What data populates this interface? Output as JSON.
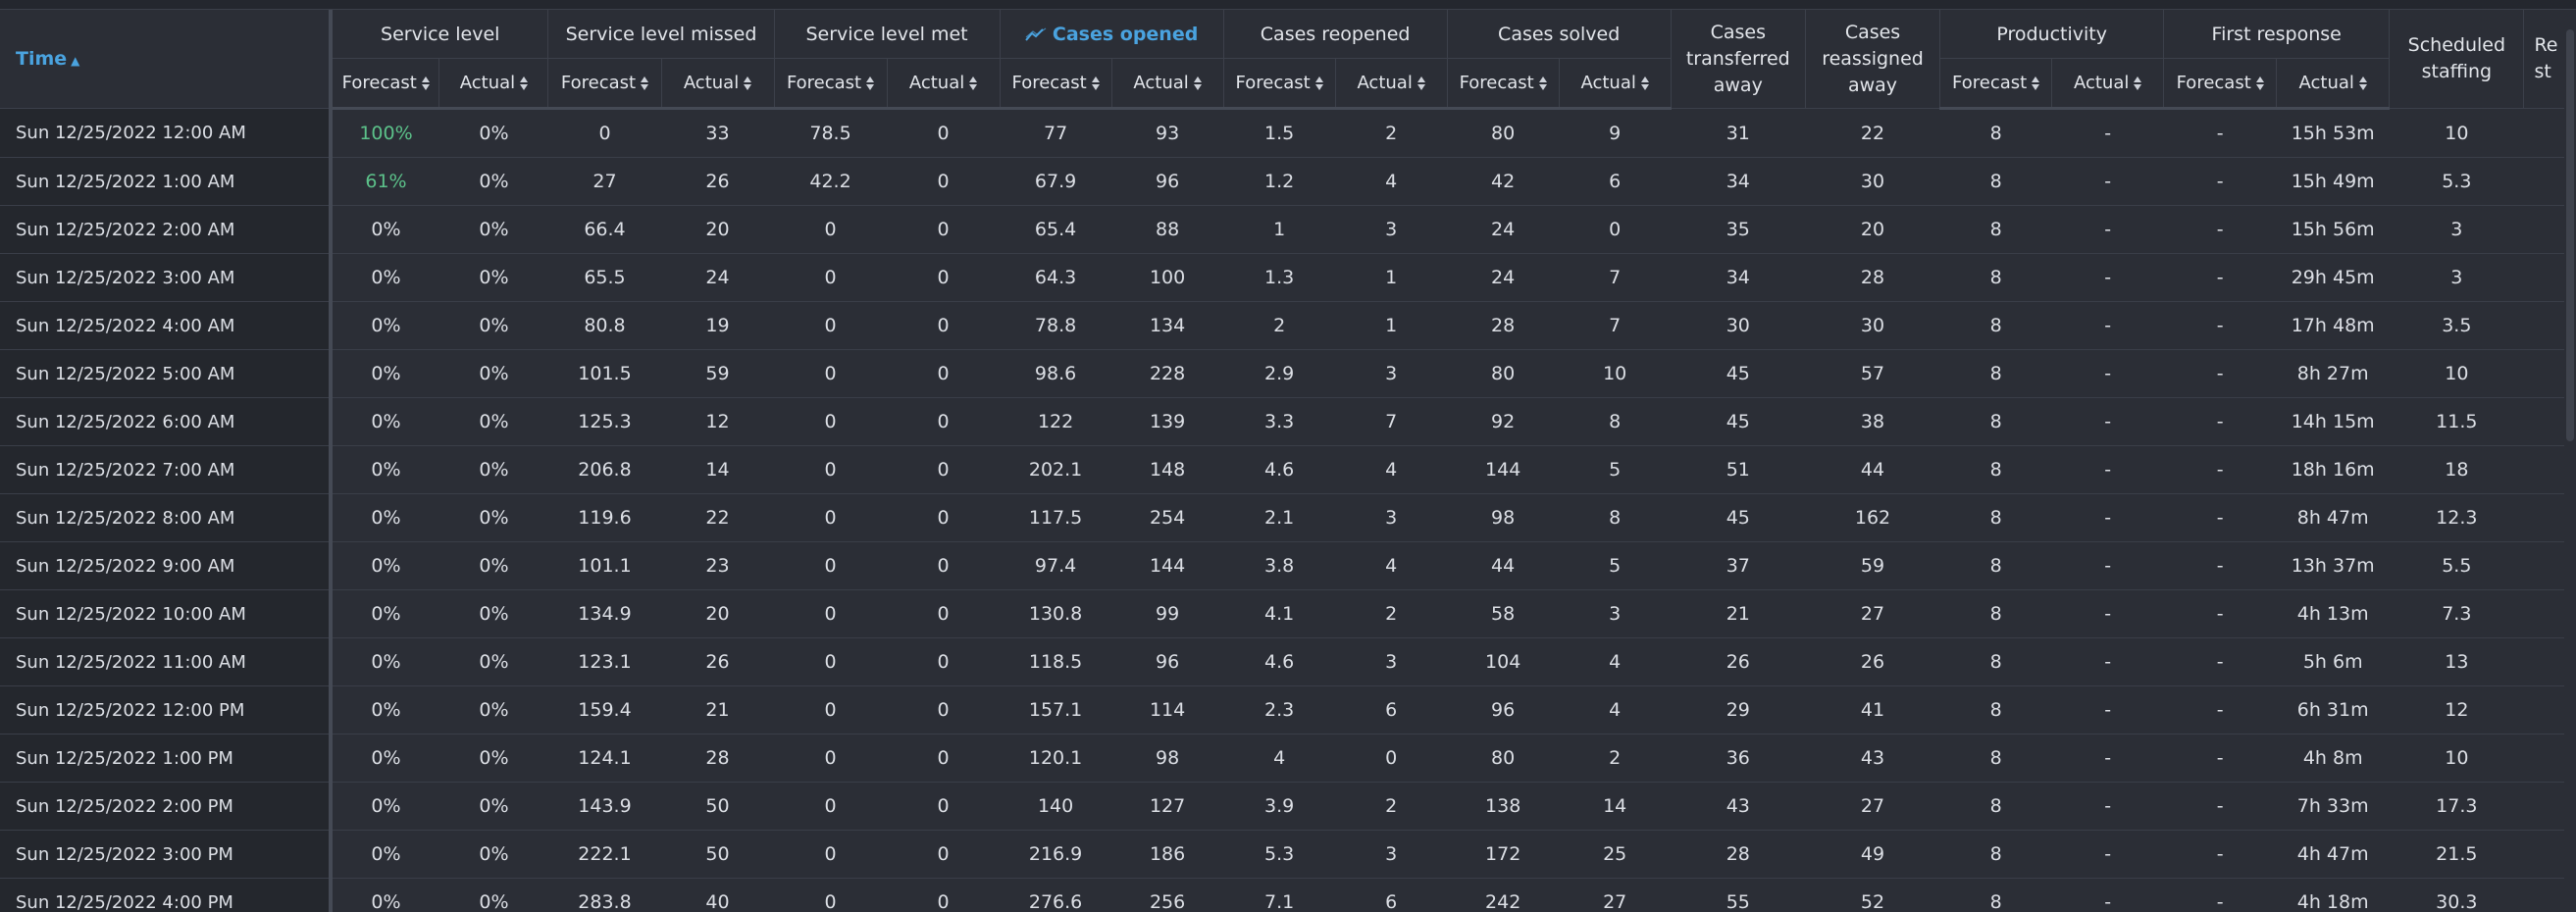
{
  "headers": {
    "time": "Time",
    "service_level": "Service level",
    "service_level_missed": "Service level missed",
    "service_level_met": "Service level met",
    "cases_opened": "Cases opened",
    "cases_reopened": "Cases reopened",
    "cases_solved": "Cases solved",
    "cases_transferred_away": "Cases transferred away",
    "cases_reassigned_away": "Cases reassigned away",
    "productivity": "Productivity",
    "first_response": "First response",
    "scheduled_staffing": "Scheduled staffing",
    "required_staffing": "Re st",
    "forecast": "Forecast",
    "actual": "Actual"
  },
  "icons": {
    "time_sort": "sort-ascending-icon",
    "column_sort": "sort-toggle-icon",
    "cases_opened": "trend-line-icon"
  },
  "colors": {
    "accent": "#4aa3df",
    "positive": "#5cc28a",
    "background": "#2b2e36"
  },
  "rows": [
    {
      "time": "Sun 12/25/2022 12:00 AM",
      "v": [
        "100%",
        "0%",
        "0",
        "33",
        "78.5",
        "0",
        "77",
        "93",
        "1.5",
        "2",
        "80",
        "9",
        "31",
        "22",
        "8",
        "-",
        "-",
        "15h 53m",
        "10"
      ],
      "green": true
    },
    {
      "time": "Sun 12/25/2022 1:00 AM",
      "v": [
        "61%",
        "0%",
        "27",
        "26",
        "42.2",
        "0",
        "67.9",
        "96",
        "1.2",
        "4",
        "42",
        "6",
        "34",
        "30",
        "8",
        "-",
        "-",
        "15h 49m",
        "5.3"
      ],
      "green": true
    },
    {
      "time": "Sun 12/25/2022 2:00 AM",
      "v": [
        "0%",
        "0%",
        "66.4",
        "20",
        "0",
        "0",
        "65.4",
        "88",
        "1",
        "3",
        "24",
        "0",
        "35",
        "20",
        "8",
        "-",
        "-",
        "15h 56m",
        "3"
      ]
    },
    {
      "time": "Sun 12/25/2022 3:00 AM",
      "v": [
        "0%",
        "0%",
        "65.5",
        "24",
        "0",
        "0",
        "64.3",
        "100",
        "1.3",
        "1",
        "24",
        "7",
        "34",
        "28",
        "8",
        "-",
        "-",
        "29h 45m",
        "3"
      ]
    },
    {
      "time": "Sun 12/25/2022 4:00 AM",
      "v": [
        "0%",
        "0%",
        "80.8",
        "19",
        "0",
        "0",
        "78.8",
        "134",
        "2",
        "1",
        "28",
        "7",
        "30",
        "30",
        "8",
        "-",
        "-",
        "17h 48m",
        "3.5"
      ]
    },
    {
      "time": "Sun 12/25/2022 5:00 AM",
      "v": [
        "0%",
        "0%",
        "101.5",
        "59",
        "0",
        "0",
        "98.6",
        "228",
        "2.9",
        "3",
        "80",
        "10",
        "45",
        "57",
        "8",
        "-",
        "-",
        "8h 27m",
        "10"
      ]
    },
    {
      "time": "Sun 12/25/2022 6:00 AM",
      "v": [
        "0%",
        "0%",
        "125.3",
        "12",
        "0",
        "0",
        "122",
        "139",
        "3.3",
        "7",
        "92",
        "8",
        "45",
        "38",
        "8",
        "-",
        "-",
        "14h 15m",
        "11.5"
      ]
    },
    {
      "time": "Sun 12/25/2022 7:00 AM",
      "v": [
        "0%",
        "0%",
        "206.8",
        "14",
        "0",
        "0",
        "202.1",
        "148",
        "4.6",
        "4",
        "144",
        "5",
        "51",
        "44",
        "8",
        "-",
        "-",
        "18h 16m",
        "18"
      ]
    },
    {
      "time": "Sun 12/25/2022 8:00 AM",
      "v": [
        "0%",
        "0%",
        "119.6",
        "22",
        "0",
        "0",
        "117.5",
        "254",
        "2.1",
        "3",
        "98",
        "8",
        "45",
        "162",
        "8",
        "-",
        "-",
        "8h 47m",
        "12.3"
      ]
    },
    {
      "time": "Sun 12/25/2022 9:00 AM",
      "v": [
        "0%",
        "0%",
        "101.1",
        "23",
        "0",
        "0",
        "97.4",
        "144",
        "3.8",
        "4",
        "44",
        "5",
        "37",
        "59",
        "8",
        "-",
        "-",
        "13h 37m",
        "5.5"
      ]
    },
    {
      "time": "Sun 12/25/2022 10:00 AM",
      "v": [
        "0%",
        "0%",
        "134.9",
        "20",
        "0",
        "0",
        "130.8",
        "99",
        "4.1",
        "2",
        "58",
        "3",
        "21",
        "27",
        "8",
        "-",
        "-",
        "4h 13m",
        "7.3"
      ]
    },
    {
      "time": "Sun 12/25/2022 11:00 AM",
      "v": [
        "0%",
        "0%",
        "123.1",
        "26",
        "0",
        "0",
        "118.5",
        "96",
        "4.6",
        "3",
        "104",
        "4",
        "26",
        "26",
        "8",
        "-",
        "-",
        "5h 6m",
        "13"
      ]
    },
    {
      "time": "Sun 12/25/2022 12:00 PM",
      "v": [
        "0%",
        "0%",
        "159.4",
        "21",
        "0",
        "0",
        "157.1",
        "114",
        "2.3",
        "6",
        "96",
        "4",
        "29",
        "41",
        "8",
        "-",
        "-",
        "6h 31m",
        "12"
      ]
    },
    {
      "time": "Sun 12/25/2022 1:00 PM",
      "v": [
        "0%",
        "0%",
        "124.1",
        "28",
        "0",
        "0",
        "120.1",
        "98",
        "4",
        "0",
        "80",
        "2",
        "36",
        "43",
        "8",
        "-",
        "-",
        "4h 8m",
        "10"
      ]
    },
    {
      "time": "Sun 12/25/2022 2:00 PM",
      "v": [
        "0%",
        "0%",
        "143.9",
        "50",
        "0",
        "0",
        "140",
        "127",
        "3.9",
        "2",
        "138",
        "14",
        "43",
        "27",
        "8",
        "-",
        "-",
        "7h 33m",
        "17.3"
      ]
    },
    {
      "time": "Sun 12/25/2022 3:00 PM",
      "v": [
        "0%",
        "0%",
        "222.1",
        "50",
        "0",
        "0",
        "216.9",
        "186",
        "5.3",
        "3",
        "172",
        "25",
        "28",
        "49",
        "8",
        "-",
        "-",
        "4h 47m",
        "21.5"
      ]
    },
    {
      "time": "Sun 12/25/2022 4:00 PM",
      "v": [
        "0%",
        "0%",
        "283.8",
        "40",
        "0",
        "0",
        "276.6",
        "256",
        "7.1",
        "6",
        "242",
        "27",
        "55",
        "52",
        "8",
        "-",
        "-",
        "4h 18m",
        "30.3"
      ]
    }
  ]
}
